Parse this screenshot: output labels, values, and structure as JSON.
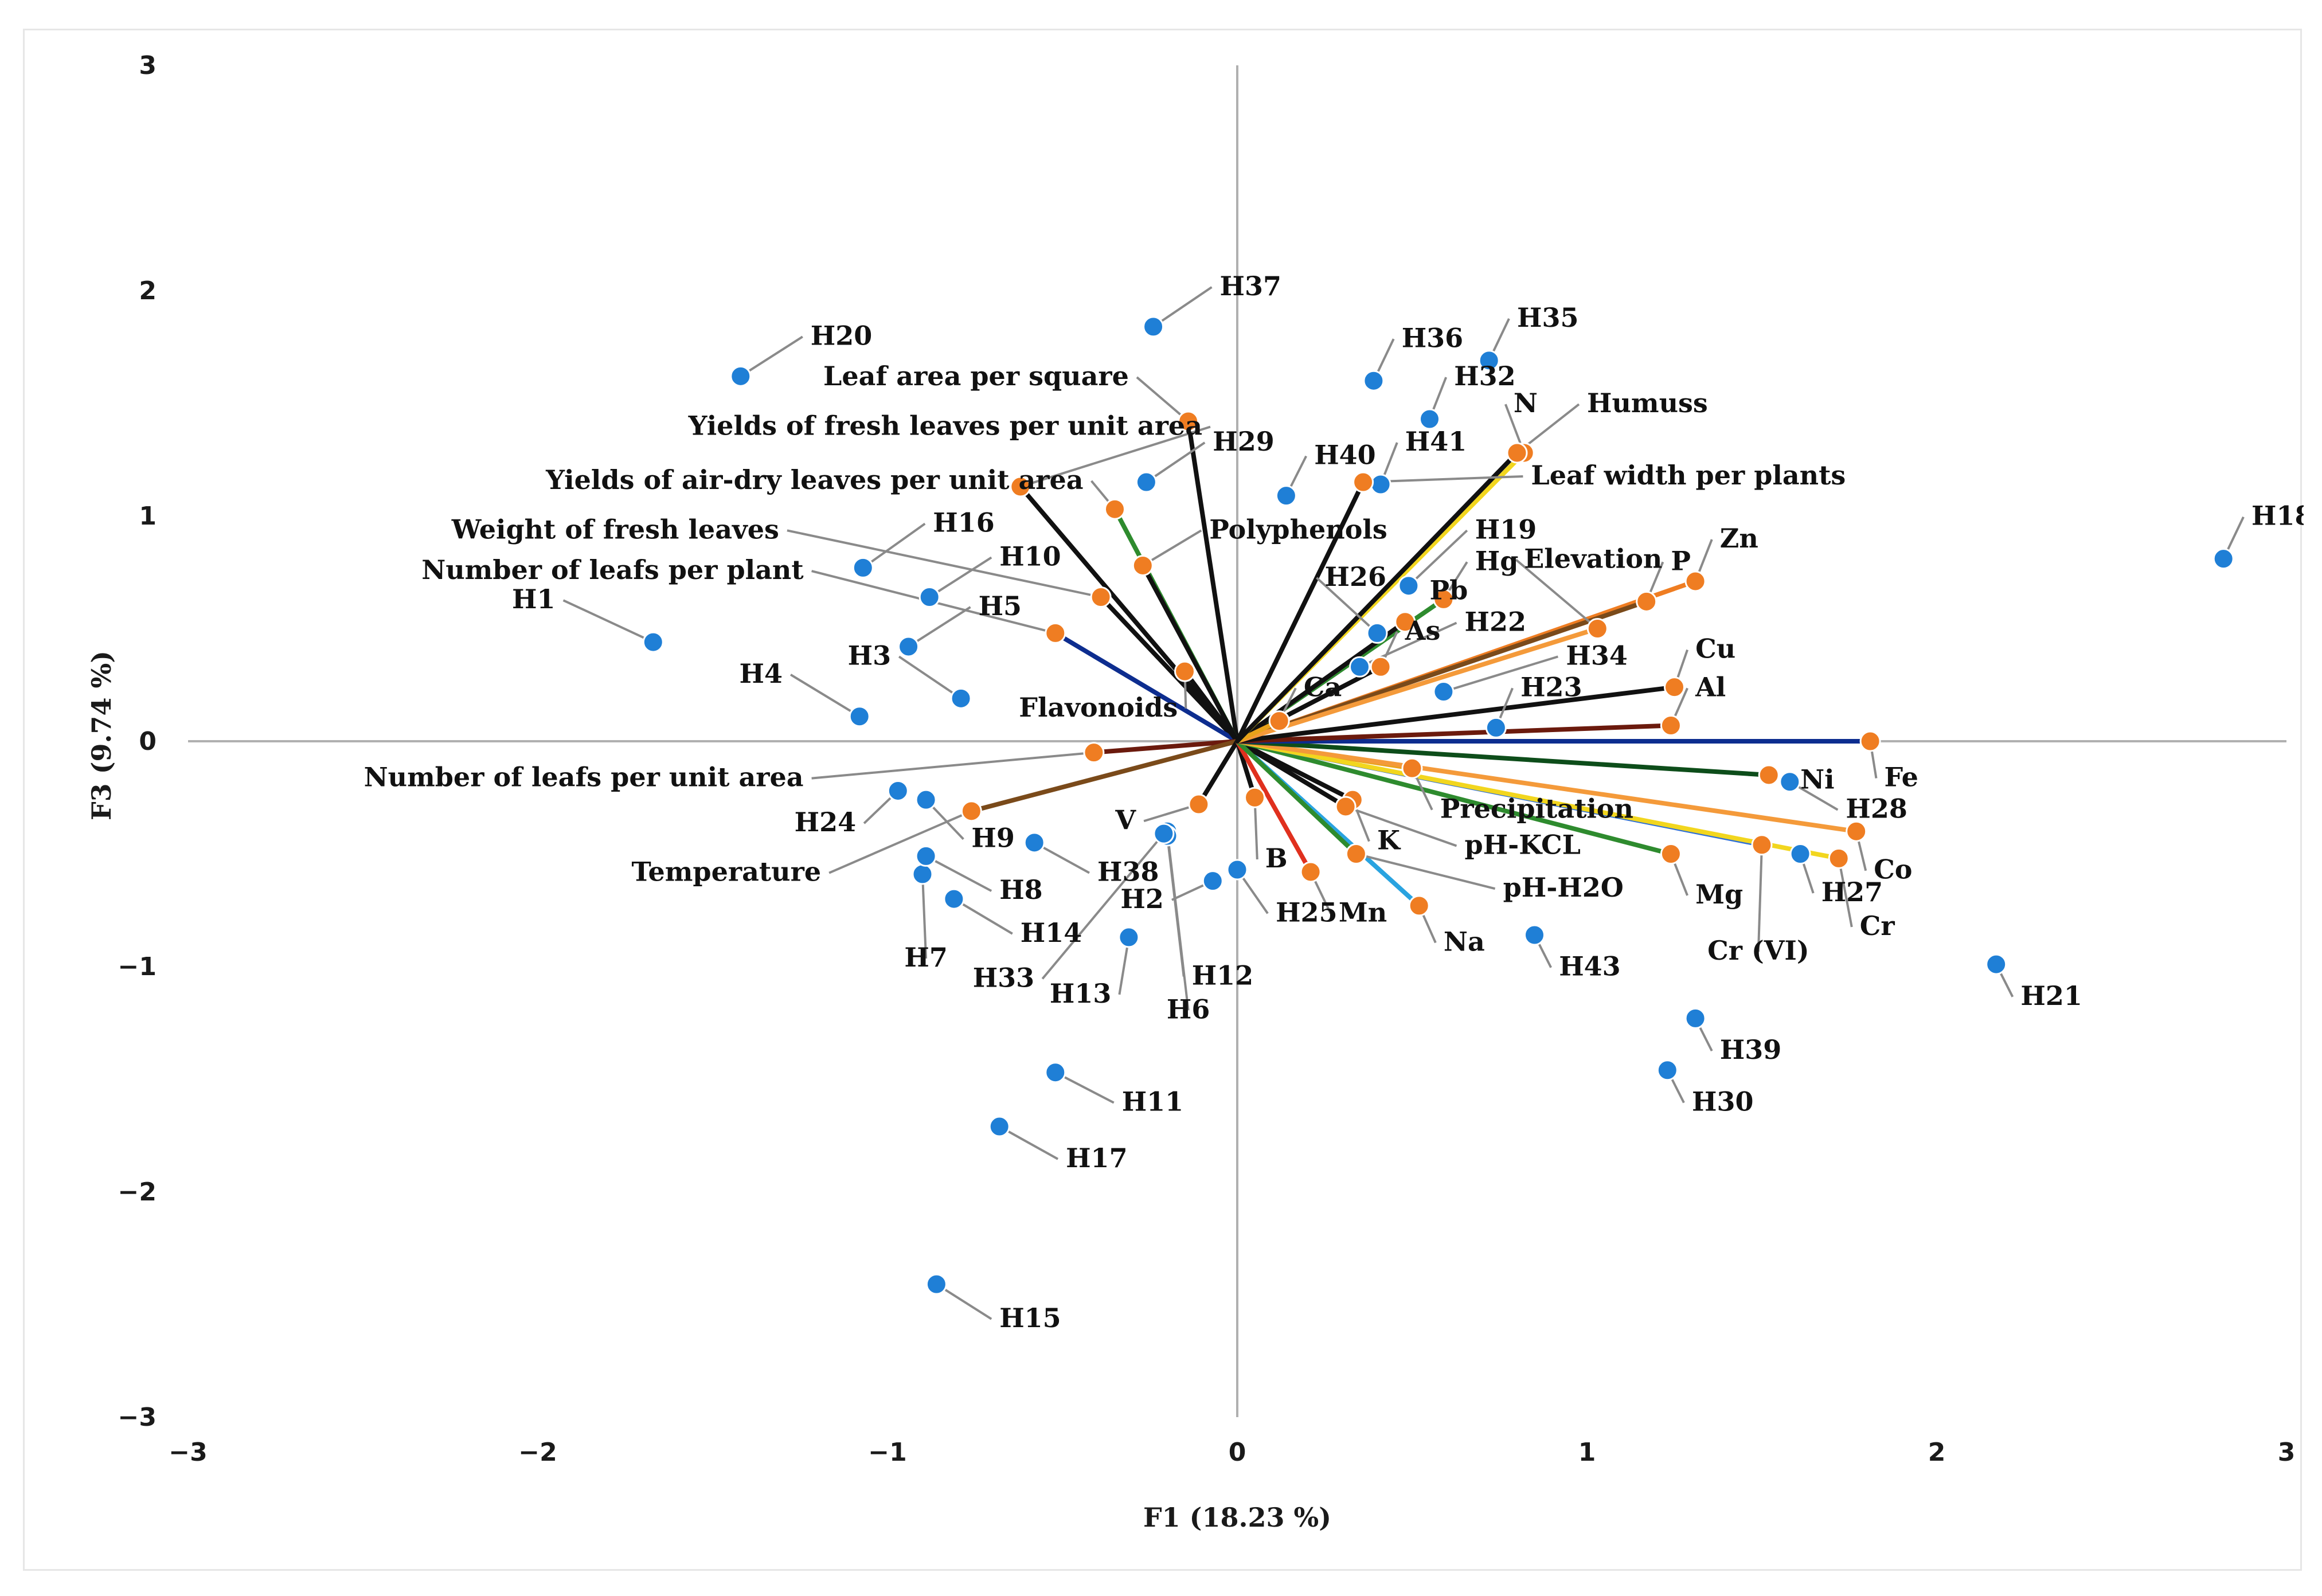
{
  "chart_data": {
    "type": "scatter",
    "subtype": "biplot",
    "title": "",
    "xlabel": "F1 (18.23 %)",
    "ylabel": "F3 (9.74 %)",
    "xlim": [
      -3,
      3
    ],
    "ylim": [
      -3,
      3
    ],
    "xticks": [
      "−3",
      "−2",
      "−1",
      "0",
      "1",
      "2",
      "3"
    ],
    "yticks": [
      "−3",
      "−2",
      "−1",
      "0",
      "1",
      "2",
      "3"
    ],
    "xtick_values": [
      -3,
      -2,
      -1,
      0,
      1,
      2,
      3
    ],
    "ytick_values": [
      -3,
      -2,
      -1,
      0,
      1,
      2,
      3
    ],
    "grid": false,
    "colors": {
      "observation": "#1f7fd6",
      "variable": "#ef7d22",
      "axis": "#b0b0b0",
      "leader": "#8a8a8a"
    },
    "observations": [
      {
        "name": "H1",
        "x": -1.67,
        "y": 0.44,
        "lx": -1.95,
        "ly": 0.59,
        "anchor": "end"
      },
      {
        "name": "H2",
        "x": -0.07,
        "y": -0.62,
        "lx": -0.21,
        "ly": -0.74,
        "anchor": "end"
      },
      {
        "name": "H3",
        "x": -0.79,
        "y": 0.19,
        "lx": -0.99,
        "ly": 0.34,
        "anchor": "end"
      },
      {
        "name": "H4",
        "x": -1.08,
        "y": 0.11,
        "lx": -1.3,
        "ly": 0.26,
        "anchor": "end"
      },
      {
        "name": "H5",
        "x": -0.94,
        "y": 0.42,
        "lx": -0.74,
        "ly": 0.56,
        "anchor": "start"
      },
      {
        "name": "H6",
        "x": -0.2,
        "y": -0.4,
        "lx": -0.14,
        "ly": -1.23,
        "anchor": "middle"
      },
      {
        "name": "H7",
        "x": -0.9,
        "y": -0.59,
        "lx": -0.89,
        "ly": -1.0,
        "anchor": "middle"
      },
      {
        "name": "H8",
        "x": -0.89,
        "y": -0.51,
        "lx": -0.68,
        "ly": -0.7,
        "anchor": "start"
      },
      {
        "name": "H9",
        "x": -0.89,
        "y": -0.26,
        "lx": -0.76,
        "ly": -0.47,
        "anchor": "start"
      },
      {
        "name": "H10",
        "x": -0.88,
        "y": 0.64,
        "lx": -0.68,
        "ly": 0.78,
        "anchor": "start"
      },
      {
        "name": "H11",
        "x": -0.52,
        "y": -1.47,
        "lx": -0.33,
        "ly": -1.64,
        "anchor": "start"
      },
      {
        "name": "H12",
        "x": -0.2,
        "y": -0.42,
        "lx": -0.13,
        "ly": -1.08,
        "anchor": "start"
      },
      {
        "name": "H13",
        "x": -0.31,
        "y": -0.87,
        "lx": -0.36,
        "ly": -1.16,
        "anchor": "end"
      },
      {
        "name": "H14",
        "x": -0.81,
        "y": -0.7,
        "lx": -0.62,
        "ly": -0.89,
        "anchor": "start"
      },
      {
        "name": "H15",
        "x": -0.86,
        "y": -2.41,
        "lx": -0.68,
        "ly": -2.6,
        "anchor": "start"
      },
      {
        "name": "H16",
        "x": -1.07,
        "y": 0.77,
        "lx": -0.87,
        "ly": 0.93,
        "anchor": "start"
      },
      {
        "name": "H17",
        "x": -0.68,
        "y": -1.71,
        "lx": -0.49,
        "ly": -1.89,
        "anchor": "start"
      },
      {
        "name": "H18",
        "x": 2.82,
        "y": 0.81,
        "lx": 2.9,
        "ly": 0.96,
        "anchor": "start"
      },
      {
        "name": "H19",
        "x": 0.49,
        "y": 0.69,
        "lx": 0.68,
        "ly": 0.9,
        "anchor": "start"
      },
      {
        "name": "H20",
        "x": -1.42,
        "y": 1.62,
        "lx": -1.22,
        "ly": 1.76,
        "anchor": "start"
      },
      {
        "name": "H21",
        "x": 2.17,
        "y": -0.99,
        "lx": 2.24,
        "ly": -1.17,
        "anchor": "start"
      },
      {
        "name": "H22",
        "x": 0.35,
        "y": 0.33,
        "lx": 0.65,
        "ly": 0.49,
        "anchor": "start"
      },
      {
        "name": "H23",
        "x": 0.74,
        "y": 0.06,
        "lx": 0.81,
        "ly": 0.2,
        "anchor": "start"
      },
      {
        "name": "H24",
        "x": -0.97,
        "y": -0.22,
        "lx": -1.09,
        "ly": -0.4,
        "anchor": "end"
      },
      {
        "name": "H25",
        "x": 0.0,
        "y": -0.57,
        "lx": 0.11,
        "ly": -0.8,
        "anchor": "start"
      },
      {
        "name": "H26",
        "x": 0.4,
        "y": 0.48,
        "lx": 0.25,
        "ly": 0.69,
        "anchor": "start"
      },
      {
        "name": "H27",
        "x": 1.61,
        "y": -0.5,
        "lx": 1.67,
        "ly": -0.71,
        "anchor": "start"
      },
      {
        "name": "H28",
        "x": 1.58,
        "y": -0.18,
        "lx": 1.74,
        "ly": -0.34,
        "anchor": "start"
      },
      {
        "name": "H29",
        "x": -0.26,
        "y": 1.15,
        "lx": -0.07,
        "ly": 1.29,
        "anchor": "start"
      },
      {
        "name": "H30",
        "x": 1.23,
        "y": -1.46,
        "lx": 1.3,
        "ly": -1.64,
        "anchor": "start"
      },
      {
        "name": "H32",
        "x": 0.55,
        "y": 1.43,
        "lx": 0.62,
        "ly": 1.58,
        "anchor": "start"
      },
      {
        "name": "H33",
        "x": -0.21,
        "y": -0.41,
        "lx": -0.58,
        "ly": -1.09,
        "anchor": "end"
      },
      {
        "name": "H34",
        "x": 0.59,
        "y": 0.22,
        "lx": 0.94,
        "ly": 0.34,
        "anchor": "start"
      },
      {
        "name": "H35",
        "x": 0.72,
        "y": 1.69,
        "lx": 0.8,
        "ly": 1.84,
        "anchor": "start"
      },
      {
        "name": "H36",
        "x": 0.39,
        "y": 1.6,
        "lx": 0.47,
        "ly": 1.75,
        "anchor": "start"
      },
      {
        "name": "H37",
        "x": -0.24,
        "y": 1.84,
        "lx": -0.05,
        "ly": 1.98,
        "anchor": "start"
      },
      {
        "name": "H38",
        "x": -0.58,
        "y": -0.45,
        "lx": -0.4,
        "ly": -0.62,
        "anchor": "start"
      },
      {
        "name": "H39",
        "x": 1.31,
        "y": -1.23,
        "lx": 1.38,
        "ly": -1.41,
        "anchor": "start"
      },
      {
        "name": "H40",
        "x": 0.14,
        "y": 1.09,
        "lx": 0.22,
        "ly": 1.23,
        "anchor": "start"
      },
      {
        "name": "H41",
        "x": 0.41,
        "y": 1.14,
        "lx": 0.48,
        "ly": 1.29,
        "anchor": "start"
      },
      {
        "name": "H43",
        "x": 0.85,
        "y": -0.86,
        "lx": 0.92,
        "ly": -1.04,
        "anchor": "start"
      }
    ],
    "variables": [
      {
        "name": "Leaf area per square",
        "x": -0.14,
        "y": 1.42,
        "color": "#111111",
        "lx": -0.31,
        "ly": 1.58,
        "anchor": "end"
      },
      {
        "name": "Yields of fresh leaves per unit area",
        "x": -0.62,
        "y": 1.13,
        "color": "#111111",
        "lx": -0.1,
        "ly": 1.36,
        "anchor": "end"
      },
      {
        "name": "Yields of air-dry leaves per unit area",
        "x": -0.35,
        "y": 1.03,
        "color": "#2e8b2e",
        "lx": -0.44,
        "ly": 1.12,
        "anchor": "end"
      },
      {
        "name": "Polyphenols",
        "x": -0.27,
        "y": 0.78,
        "color": "#111111",
        "lx": -0.08,
        "ly": 0.9,
        "anchor": "start"
      },
      {
        "name": "Weight of fresh leaves",
        "x": -0.39,
        "y": 0.64,
        "color": "#111111",
        "lx": -1.31,
        "ly": 0.9,
        "anchor": "end"
      },
      {
        "name": "Number of leafs per plant",
        "x": -0.52,
        "y": 0.48,
        "color": "#0d2d8f",
        "lx": -1.24,
        "ly": 0.72,
        "anchor": "end"
      },
      {
        "name": "Flavonoids",
        "x": -0.15,
        "y": 0.31,
        "color": "#111111",
        "lx": -0.17,
        "ly": 0.11,
        "anchor": "end"
      },
      {
        "name": "Number of leafs per unit area",
        "x": -0.41,
        "y": -0.05,
        "color": "#6b1a0d",
        "lx": -1.24,
        "ly": -0.2,
        "anchor": "end"
      },
      {
        "name": "Temperature",
        "x": -0.76,
        "y": -0.31,
        "color": "#7a4a1a",
        "lx": -1.19,
        "ly": -0.62,
        "anchor": "end"
      },
      {
        "name": "V",
        "x": -0.11,
        "y": -0.28,
        "color": "#111111",
        "lx": -0.29,
        "ly": -0.39,
        "anchor": "end"
      },
      {
        "name": "B",
        "x": 0.05,
        "y": -0.25,
        "color": "#111111",
        "lx": 0.08,
        "ly": -0.56,
        "anchor": "start"
      },
      {
        "name": "Mn",
        "x": 0.21,
        "y": -0.58,
        "color": "#e0301e",
        "lx": 0.29,
        "ly": -0.8,
        "anchor": "start"
      },
      {
        "name": "Na",
        "x": 0.52,
        "y": -0.73,
        "color": "#29a3e0",
        "lx": 0.59,
        "ly": -0.93,
        "anchor": "start"
      },
      {
        "name": "K",
        "x": 0.33,
        "y": -0.26,
        "color": "#111111",
        "lx": 0.4,
        "ly": -0.48,
        "anchor": "start"
      },
      {
        "name": "pH-KCL",
        "x": 0.31,
        "y": -0.29,
        "color": "#111111",
        "lx": 0.65,
        "ly": -0.5,
        "anchor": "start"
      },
      {
        "name": "Precipitation",
        "x": 0.5,
        "y": -0.12,
        "color": "#e8a21a",
        "lx": 0.58,
        "ly": -0.34,
        "anchor": "start"
      },
      {
        "name": "pH-H2O",
        "x": 0.34,
        "y": -0.5,
        "color": "#2e8b2e",
        "lx": 0.76,
        "ly": -0.69,
        "anchor": "start"
      },
      {
        "name": "Mg",
        "x": 1.24,
        "y": -0.5,
        "color": "#2e8b2e",
        "lx": 1.31,
        "ly": -0.72,
        "anchor": "start"
      },
      {
        "name": "Cr (VI)",
        "x": 1.5,
        "y": -0.46,
        "color": "#2e6fd6",
        "lx": 1.49,
        "ly": -0.97,
        "anchor": "middle"
      },
      {
        "name": "Cr",
        "x": 1.72,
        "y": -0.52,
        "color": "#f2d61e",
        "lx": 1.78,
        "ly": -0.86,
        "anchor": "start"
      },
      {
        "name": "Co",
        "x": 1.77,
        "y": -0.4,
        "color": "#f49a3a",
        "lx": 1.82,
        "ly": -0.61,
        "anchor": "start"
      },
      {
        "name": "Ni",
        "x": 1.52,
        "y": -0.15,
        "color": "#0d4d1a",
        "lx": 1.61,
        "ly": -0.21,
        "anchor": "start"
      },
      {
        "name": "Fe",
        "x": 1.81,
        "y": 0.0,
        "color": "#0d2d8f",
        "lx": 1.85,
        "ly": -0.2,
        "anchor": "start"
      },
      {
        "name": "Al",
        "x": 1.24,
        "y": 0.07,
        "color": "#6b1a0d",
        "lx": 1.31,
        "ly": 0.2,
        "anchor": "start"
      },
      {
        "name": "Cu",
        "x": 1.25,
        "y": 0.24,
        "color": "#111111",
        "lx": 1.31,
        "ly": 0.37,
        "anchor": "start"
      },
      {
        "name": "Zn",
        "x": 1.31,
        "y": 0.71,
        "color": "#ef7d22",
        "lx": 1.38,
        "ly": 0.86,
        "anchor": "start"
      },
      {
        "name": "P",
        "x": 1.17,
        "y": 0.62,
        "color": "#7a4a1a",
        "lx": 1.24,
        "ly": 0.76,
        "anchor": "start"
      },
      {
        "name": "Elevation",
        "x": 1.03,
        "y": 0.5,
        "color": "#f49a3a",
        "lx": 0.82,
        "ly": 0.77,
        "anchor": "start"
      },
      {
        "name": "Hg",
        "x": 0.59,
        "y": 0.63,
        "color": "#2e8b2e",
        "lx": 0.68,
        "ly": 0.76,
        "anchor": "start"
      },
      {
        "name": "Pb",
        "x": 0.48,
        "y": 0.53,
        "color": "#111111",
        "lx": 0.55,
        "ly": 0.63,
        "anchor": "start"
      },
      {
        "name": "As",
        "x": 0.41,
        "y": 0.33,
        "color": "#111111",
        "lx": 0.48,
        "ly": 0.45,
        "anchor": "start"
      },
      {
        "name": "Ca",
        "x": 0.12,
        "y": 0.09,
        "color": "#e8a21a",
        "lx": 0.19,
        "ly": 0.2,
        "anchor": "start"
      },
      {
        "name": "N",
        "x": 0.82,
        "y": 1.28,
        "color": "#f2d61e",
        "lx": 0.79,
        "ly": 1.46,
        "anchor": "start"
      },
      {
        "name": "Humuss",
        "x": 0.8,
        "y": 1.28,
        "color": "#111111",
        "lx": 1.0,
        "ly": 1.46,
        "anchor": "start"
      },
      {
        "name": "Leaf width per plants",
        "x": 0.36,
        "y": 1.15,
        "color": "#111111",
        "lx": 0.84,
        "ly": 1.14,
        "anchor": "start"
      }
    ]
  }
}
